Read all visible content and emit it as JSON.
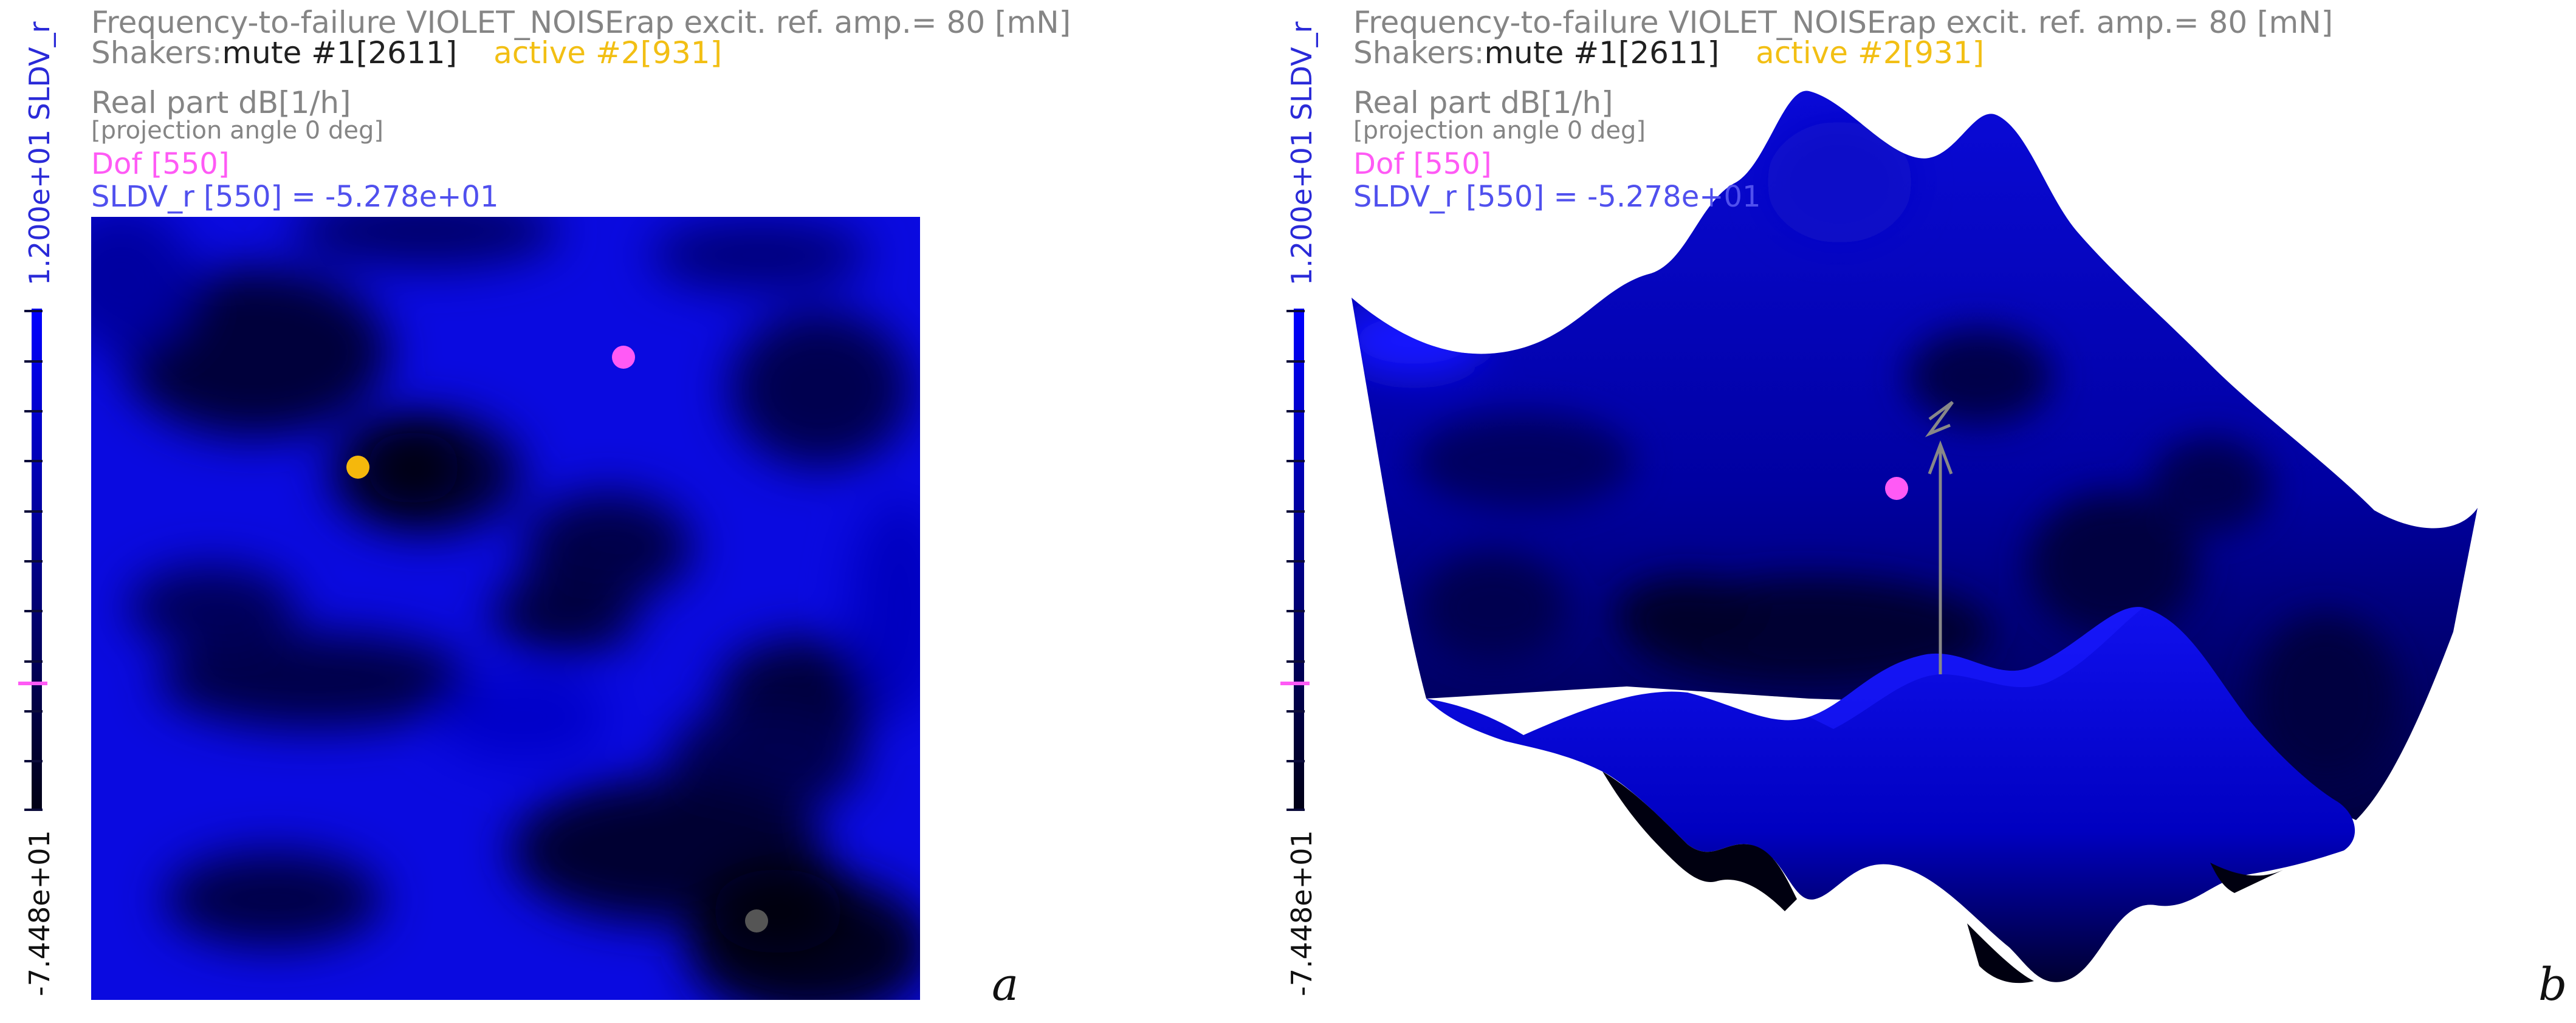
{
  "panels": [
    {
      "id": "a",
      "label": "a",
      "header": {
        "title": "Frequency-to-failure VIOLET_NOISErap excit. ref. amp.= 80 [mN]",
        "shakers_prefix": "Shakers:",
        "mute": "mute #1[2611]",
        "active": "active #2[931]",
        "real_part": "Real part dB[1/h]",
        "projection": "[projection angle 0 deg]",
        "dof": "Dof [550]",
        "value": "SLDV_r [550] = -5.278e+01"
      },
      "colorbar": {
        "max_label": "1.200e+01 SLDV_r",
        "min_label": "-7.448e+01",
        "max": 12.0,
        "min": -74.48,
        "marker_value": -52.78
      },
      "markers": [
        "magenta-dof-marker",
        "orange-active-shaker-marker",
        "gray-mute-shaker-marker"
      ]
    },
    {
      "id": "b",
      "label": "b",
      "header": {
        "title": "Frequency-to-failure VIOLET_NOISErap excit. ref. amp.= 80 [mN]",
        "shakers_prefix": "Shakers:",
        "mute": "mute #1[2611]",
        "active": "active #2[931]",
        "real_part": "Real part dB[1/h]",
        "projection": "[projection angle 0 deg]",
        "dof": "Dof [550]",
        "value": "SLDV_r [550] = -5.278e+01"
      },
      "colorbar": {
        "max_label": "1.200e+01 SLDV_r",
        "min_label": "-7.448e+01",
        "max": 12.0,
        "min": -74.48,
        "marker_value": -52.78
      },
      "markers": [
        "magenta-dof-marker",
        "z-axis-arrow"
      ]
    }
  ],
  "colors": {
    "surface_blue": "#0000ff",
    "dark": "#00001a",
    "dof_marker": "#ff5af5",
    "active_shaker": "#f5b80c",
    "mute_shaker": "#555555",
    "axis_gray": "#888888"
  }
}
